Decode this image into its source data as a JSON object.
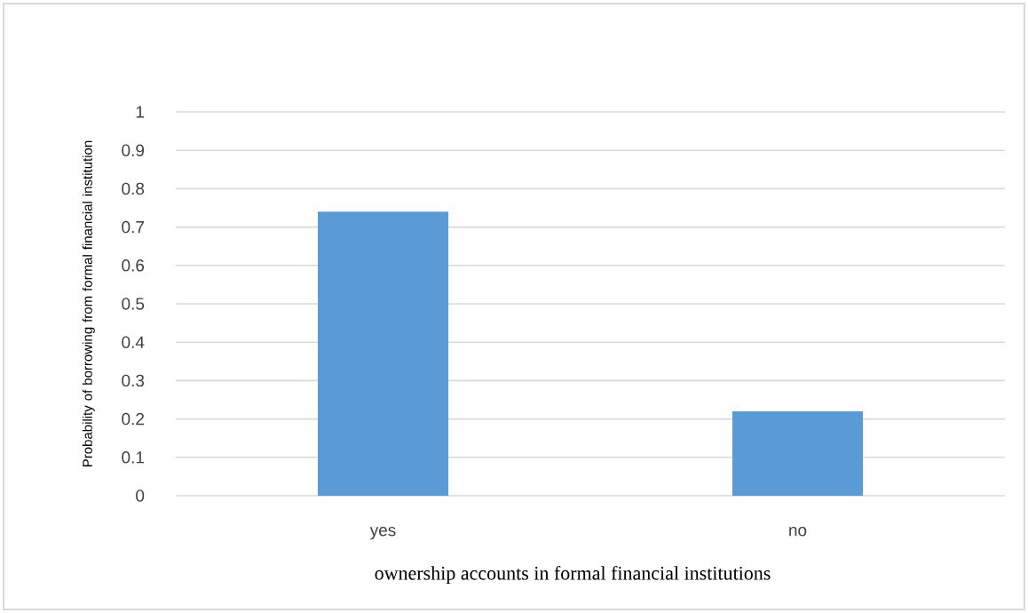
{
  "chart_data": {
    "type": "bar",
    "categories": [
      "yes",
      "no"
    ],
    "values": [
      0.74,
      0.22
    ],
    "color": "#5b9bd5",
    "xlabel": "ownership accounts in formal financial institutions",
    "ylabel": "Probability of borrowing from formal financial institution",
    "ylim": [
      0,
      1
    ],
    "yticks": [
      0,
      0.1,
      0.2,
      0.3,
      0.4,
      0.5,
      0.6,
      0.7,
      0.8,
      0.9,
      1
    ],
    "grid": "y"
  }
}
